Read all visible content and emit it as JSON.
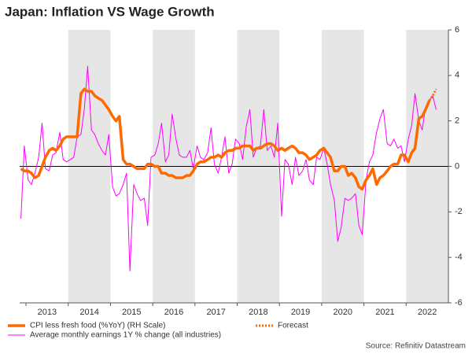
{
  "chart_data": {
    "type": "line",
    "title": "Japan: Inflation VS Wage Growth",
    "source": "Source: Refinitiv Datastream",
    "xlim": [
      2012.85,
      2023.0
    ],
    "xticks": [
      {
        "value": 2013.5,
        "label": "2013"
      },
      {
        "value": 2014.5,
        "label": "2014"
      },
      {
        "value": 2015.5,
        "label": "2015"
      },
      {
        "value": 2016.5,
        "label": "2016"
      },
      {
        "value": 2017.5,
        "label": "2017"
      },
      {
        "value": 2018.5,
        "label": "2018"
      },
      {
        "value": 2019.5,
        "label": "2019"
      },
      {
        "value": 2020.5,
        "label": "2020"
      },
      {
        "value": 2021.5,
        "label": "2021"
      },
      {
        "value": 2022.5,
        "label": "2022"
      }
    ],
    "ylim": [
      -6,
      6
    ],
    "yticks": [
      6,
      4,
      2,
      0,
      -2,
      -4,
      -6
    ],
    "alternate_shading": true,
    "x": [
      2012.88,
      2012.96,
      2013.05,
      2013.13,
      2013.21,
      2013.3,
      2013.38,
      2013.46,
      2013.55,
      2013.63,
      2013.71,
      2013.8,
      2013.88,
      2013.96,
      2014.05,
      2014.13,
      2014.21,
      2014.3,
      2014.38,
      2014.46,
      2014.55,
      2014.63,
      2014.71,
      2014.8,
      2014.88,
      2014.96,
      2015.05,
      2015.13,
      2015.21,
      2015.3,
      2015.38,
      2015.46,
      2015.55,
      2015.63,
      2015.71,
      2015.8,
      2015.88,
      2015.96,
      2016.05,
      2016.13,
      2016.21,
      2016.3,
      2016.38,
      2016.46,
      2016.55,
      2016.63,
      2016.71,
      2016.8,
      2016.88,
      2016.96,
      2017.05,
      2017.13,
      2017.21,
      2017.3,
      2017.38,
      2017.46,
      2017.55,
      2017.63,
      2017.71,
      2017.8,
      2017.88,
      2017.96,
      2018.05,
      2018.13,
      2018.21,
      2018.3,
      2018.38,
      2018.46,
      2018.55,
      2018.63,
      2018.71,
      2018.8,
      2018.88,
      2018.96,
      2019.05,
      2019.13,
      2019.21,
      2019.3,
      2019.38,
      2019.46,
      2019.55,
      2019.63,
      2019.71,
      2019.8,
      2019.88,
      2019.96,
      2020.05,
      2020.13,
      2020.21,
      2020.3,
      2020.38,
      2020.46,
      2020.55,
      2020.63,
      2020.71,
      2020.8,
      2020.88,
      2020.96,
      2021.05,
      2021.13,
      2021.21,
      2021.3,
      2021.38,
      2021.46,
      2021.55,
      2021.63,
      2021.71,
      2021.8,
      2021.88,
      2021.96,
      2022.05,
      2022.13,
      2022.21,
      2022.3,
      2022.38,
      2022.46,
      2022.55,
      2022.63,
      2022.71
    ],
    "series": [
      {
        "name": "Average monthly earnings 1Y % change (all industries)",
        "color": "#ff00ff",
        "width": 1,
        "dashed": false,
        "values": [
          -2.3,
          0.9,
          -0.6,
          -0.8,
          -0.3,
          0.4,
          1.9,
          -0.1,
          -0.2,
          0.5,
          0.6,
          1.5,
          0.3,
          0.2,
          0.3,
          0.4,
          1.3,
          1.4,
          2.5,
          4.4,
          1.6,
          1.4,
          1.0,
          0.7,
          0.5,
          1.4,
          -0.9,
          -1.3,
          -1.2,
          -0.8,
          -0.3,
          -4.6,
          -0.8,
          -1.2,
          -1.5,
          -1.4,
          -2.6,
          0.4,
          0.5,
          1.0,
          1.9,
          0.2,
          0.5,
          2.3,
          1.2,
          0.5,
          0.4,
          0.4,
          0.7,
          -0.1,
          0.9,
          0.4,
          0.3,
          0.6,
          1.7,
          0.1,
          -0.3,
          0.4,
          1.3,
          -0.3,
          0.1,
          1.2,
          1.0,
          0.3,
          1.7,
          2.5,
          0.4,
          0.8,
          0.9,
          2.5,
          0.7,
          0.9,
          0.4,
          1.9,
          -2.2,
          0.3,
          0.1,
          -0.8,
          0.4,
          -0.4,
          -0.2,
          0.3,
          -0.6,
          -0.8,
          0.4,
          0.3,
          0.8,
          0.1,
          -0.8,
          -1.5,
          -3.3,
          -2.7,
          -1.4,
          -1.5,
          -1.4,
          -1.2,
          -2.6,
          -3.0,
          -0.6,
          0.2,
          0.5,
          1.5,
          2.1,
          2.5,
          1.0,
          0.9,
          1.2,
          0.8,
          0.9,
          0.2,
          1.2,
          1.8,
          3.2,
          2.0,
          1.6,
          2.6,
          2.9,
          3.1,
          2.5
        ]
      },
      {
        "name": "CPI less fresh food (%YoY) (RH Scale)",
        "color": "#ff6a00",
        "width": 3.5,
        "dashed": false,
        "values": [
          -0.1,
          -0.2,
          -0.2,
          -0.3,
          -0.5,
          -0.4,
          0.0,
          0.4,
          0.7,
          0.8,
          0.7,
          0.9,
          1.2,
          1.3,
          1.3,
          1.3,
          1.3,
          3.2,
          3.4,
          3.3,
          3.3,
          3.1,
          3.0,
          2.9,
          2.7,
          2.5,
          2.2,
          2.0,
          2.2,
          0.3,
          0.1,
          0.1,
          0.0,
          -0.1,
          -0.1,
          -0.1,
          0.1,
          0.1,
          0.0,
          0.0,
          -0.3,
          -0.3,
          -0.4,
          -0.4,
          -0.5,
          -0.5,
          -0.5,
          -0.4,
          -0.4,
          -0.2,
          0.1,
          0.2,
          0.2,
          0.3,
          0.4,
          0.4,
          0.5,
          0.4,
          0.6,
          0.7,
          0.7,
          0.8,
          0.8,
          0.9,
          0.9,
          0.9,
          0.7,
          0.8,
          0.8,
          0.9,
          1.0,
          1.0,
          0.9,
          0.7,
          0.8,
          0.7,
          0.8,
          0.9,
          0.8,
          0.6,
          0.6,
          0.5,
          0.3,
          0.4,
          0.5,
          0.7,
          0.8,
          0.6,
          0.4,
          -0.2,
          -0.2,
          0.0,
          0.0,
          -0.4,
          -0.3,
          -0.5,
          -0.9,
          -1.0,
          -0.6,
          -0.4,
          -0.1,
          -0.8,
          -0.5,
          -0.4,
          -0.2,
          0.0,
          0.1,
          0.1,
          0.5,
          0.5,
          0.2,
          0.6,
          0.8,
          2.1,
          2.2,
          2.5,
          2.9,
          null,
          null
        ]
      },
      {
        "name": "Forecast",
        "color": "#ff6a00",
        "width": 3,
        "dashed": true,
        "values": [
          null,
          null,
          null,
          null,
          null,
          null,
          null,
          null,
          null,
          null,
          null,
          null,
          null,
          null,
          null,
          null,
          null,
          null,
          null,
          null,
          null,
          null,
          null,
          null,
          null,
          null,
          null,
          null,
          null,
          null,
          null,
          null,
          null,
          null,
          null,
          null,
          null,
          null,
          null,
          null,
          null,
          null,
          null,
          null,
          null,
          null,
          null,
          null,
          null,
          null,
          null,
          null,
          null,
          null,
          null,
          null,
          null,
          null,
          null,
          null,
          null,
          null,
          null,
          null,
          null,
          null,
          null,
          null,
          null,
          null,
          null,
          null,
          null,
          null,
          null,
          null,
          null,
          null,
          null,
          null,
          null,
          null,
          null,
          null,
          null,
          null,
          null,
          null,
          null,
          null,
          null,
          null,
          null,
          null,
          null,
          null,
          null,
          null,
          null,
          null,
          null,
          null,
          null,
          null,
          null,
          null,
          null,
          null,
          null,
          null,
          null,
          null,
          null,
          null,
          null,
          null,
          2.9,
          3.1,
          3.4
        ]
      }
    ]
  }
}
